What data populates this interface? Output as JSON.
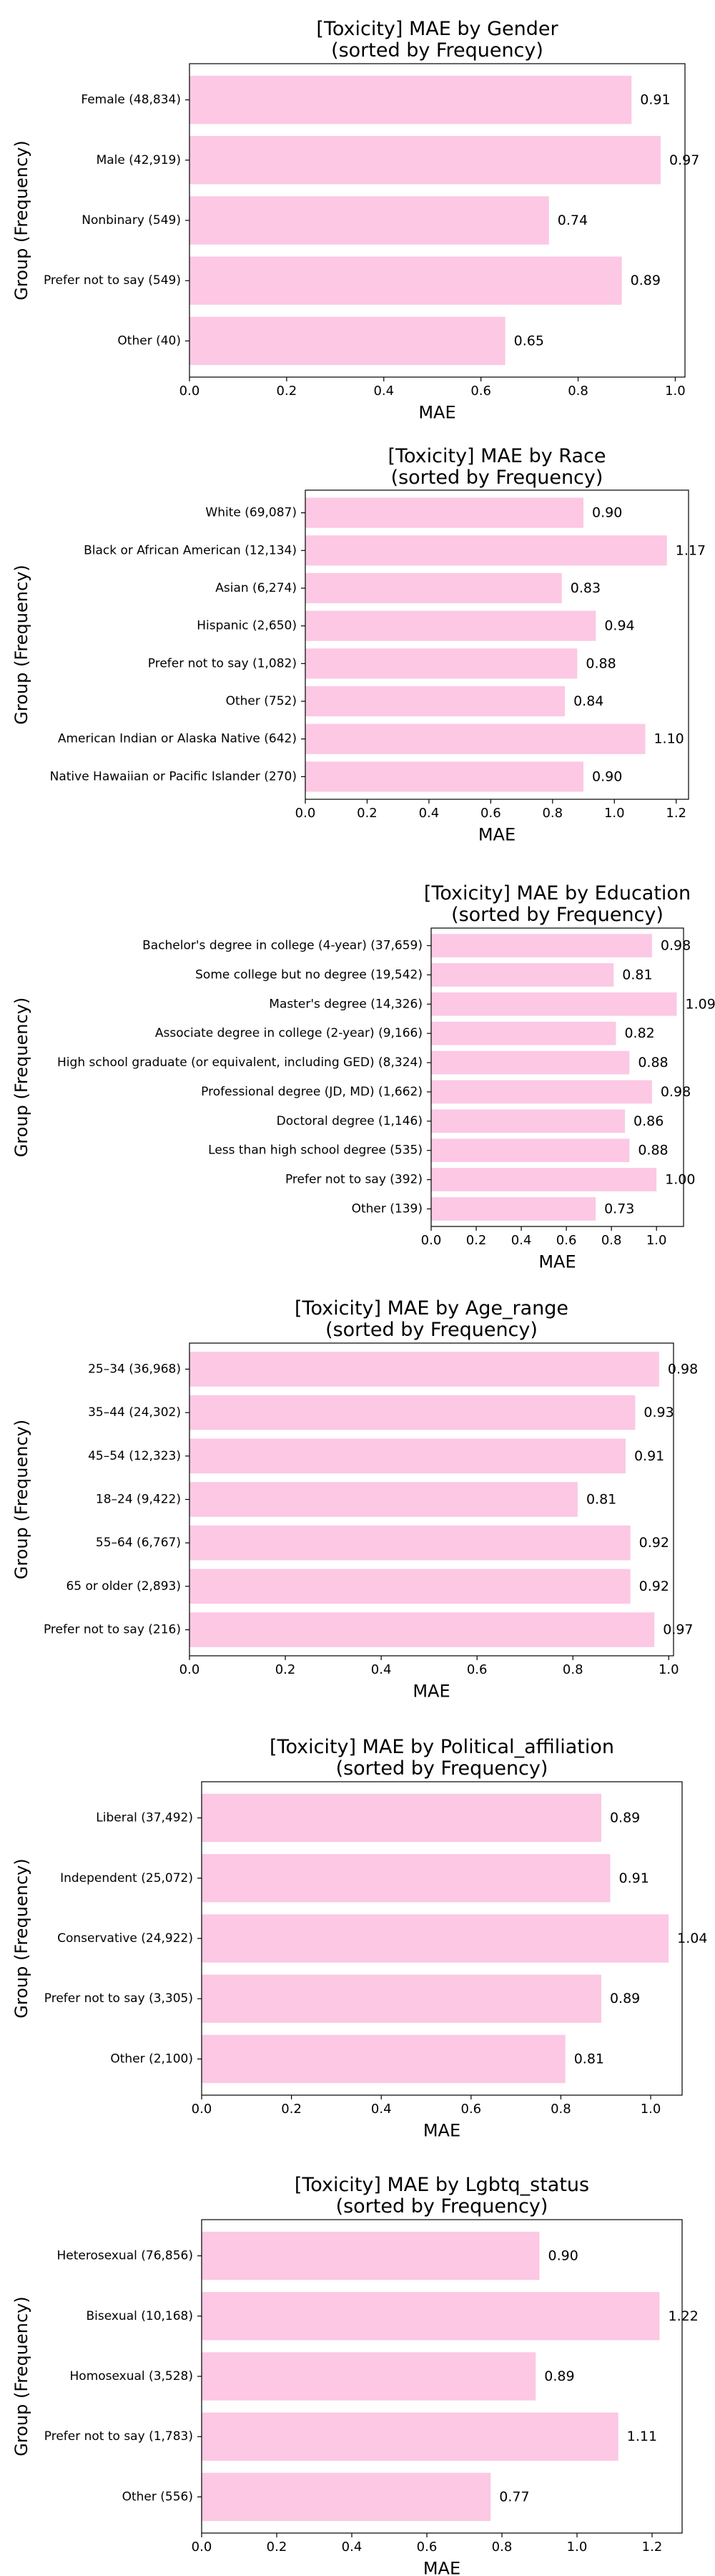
{
  "bar_color": "#fcc8e4",
  "chart_data": [
    {
      "type": "bar",
      "orientation": "horizontal",
      "title": "[Toxicity] MAE by Gender",
      "subtitle": "(sorted by Frequency)",
      "xlabel": "MAE",
      "ylabel": "Group (Frequency)",
      "xlim": [
        0,
        1.02
      ],
      "xticks": [
        0.0,
        0.2,
        0.4,
        0.6,
        0.8,
        1.0
      ],
      "categories": [
        "Female (48,834)",
        "Male (42,919)",
        "Nonbinary (549)",
        "Prefer not to say (549)",
        "Other (40)"
      ],
      "values": [
        0.91,
        0.97,
        0.74,
        0.89,
        0.65
      ],
      "grid": false,
      "legend": "none"
    },
    {
      "type": "bar",
      "orientation": "horizontal",
      "title": "[Toxicity] MAE by Race",
      "subtitle": "(sorted by Frequency)",
      "xlabel": "MAE",
      "ylabel": "Group (Frequency)",
      "xlim": [
        0,
        1.24
      ],
      "xticks": [
        0.0,
        0.2,
        0.4,
        0.6,
        0.8,
        1.0,
        1.2
      ],
      "categories": [
        "White (69,087)",
        "Black or African American (12,134)",
        "Asian (6,274)",
        "Hispanic (2,650)",
        "Prefer not to say (1,082)",
        "Other (752)",
        "American Indian or Alaska Native (642)",
        "Native Hawaiian or Pacific Islander (270)"
      ],
      "values": [
        0.9,
        1.17,
        0.83,
        0.94,
        0.88,
        0.84,
        1.1,
        0.9
      ],
      "grid": false,
      "legend": "none"
    },
    {
      "type": "bar",
      "orientation": "horizontal",
      "title": "[Toxicity] MAE by Education",
      "subtitle": "(sorted by Frequency)",
      "xlabel": "MAE",
      "ylabel": "Group (Frequency)",
      "xlim": [
        0,
        1.12
      ],
      "xticks": [
        0.0,
        0.2,
        0.4,
        0.6,
        0.8,
        1.0
      ],
      "categories": [
        "Bachelor's degree in college (4-year) (37,659)",
        "Some college but no degree (19,542)",
        "Master's degree (14,326)",
        "Associate degree in college (2-year) (9,166)",
        "High school graduate (or equivalent, including GED) (8,324)",
        "Professional degree (JD, MD) (1,662)",
        "Doctoral degree (1,146)",
        "Less than high school degree (535)",
        "Prefer not to say (392)",
        "Other (139)"
      ],
      "values": [
        0.98,
        0.81,
        1.09,
        0.82,
        0.88,
        0.98,
        0.86,
        0.88,
        1.0,
        0.73
      ],
      "grid": false,
      "legend": "none"
    },
    {
      "type": "bar",
      "orientation": "horizontal",
      "title": "[Toxicity] MAE by Age_range",
      "subtitle": "(sorted by Frequency)",
      "xlabel": "MAE",
      "ylabel": "Group (Frequency)",
      "xlim": [
        0,
        1.01
      ],
      "xticks": [
        0.0,
        0.2,
        0.4,
        0.6,
        0.8,
        1.0
      ],
      "categories": [
        "25–34 (36,968)",
        "35–44 (24,302)",
        "45–54 (12,323)",
        "18–24 (9,422)",
        "55–64 (6,767)",
        "65 or older (2,893)",
        "Prefer not to say (216)"
      ],
      "values": [
        0.98,
        0.93,
        0.91,
        0.81,
        0.92,
        0.92,
        0.97
      ],
      "grid": false,
      "legend": "none"
    },
    {
      "type": "bar",
      "orientation": "horizontal",
      "title": "[Toxicity] MAE by Political_affiliation",
      "subtitle": "(sorted by Frequency)",
      "xlabel": "MAE",
      "ylabel": "Group (Frequency)",
      "xlim": [
        0,
        1.07
      ],
      "xticks": [
        0.0,
        0.2,
        0.4,
        0.6,
        0.8,
        1.0
      ],
      "categories": [
        "Liberal (37,492)",
        "Independent (25,072)",
        "Conservative (24,922)",
        "Prefer not to say (3,305)",
        "Other (2,100)"
      ],
      "values": [
        0.89,
        0.91,
        1.04,
        0.89,
        0.81
      ],
      "grid": false,
      "legend": "none"
    },
    {
      "type": "bar",
      "orientation": "horizontal",
      "title": "[Toxicity] MAE by Lgbtq_status",
      "subtitle": "(sorted by Frequency)",
      "xlabel": "MAE",
      "ylabel": "Group (Frequency)",
      "xlim": [
        0,
        1.28
      ],
      "xticks": [
        0.0,
        0.2,
        0.4,
        0.6,
        0.8,
        1.0,
        1.2
      ],
      "categories": [
        "Heterosexual (76,856)",
        "Bisexual (10,168)",
        "Homosexual (3,528)",
        "Prefer not to say (1,783)",
        "Other (556)"
      ],
      "values": [
        0.9,
        1.22,
        0.89,
        1.11,
        0.77
      ],
      "grid": false,
      "legend": "none"
    }
  ]
}
